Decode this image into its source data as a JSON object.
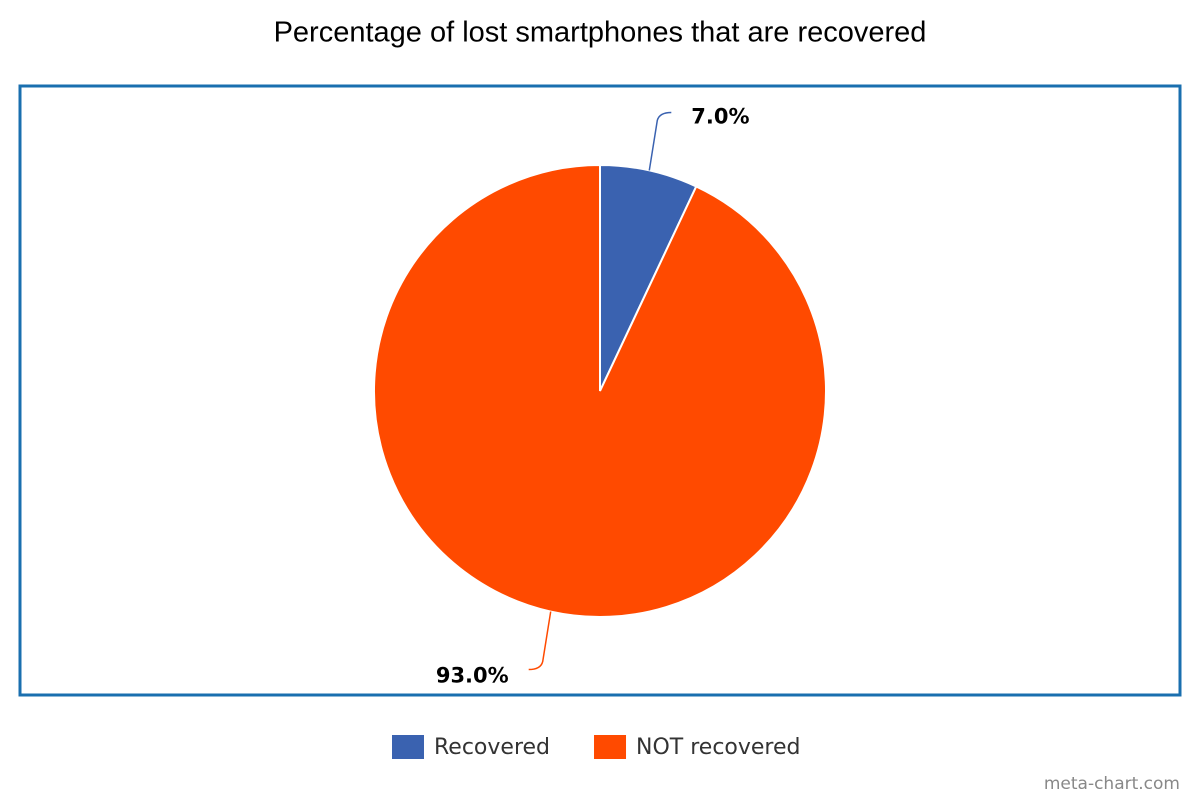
{
  "chart_data": {
    "type": "pie",
    "title": "Percentage of lost smartphones that are recovered",
    "categories": [
      "Recovered",
      "NOT recovered"
    ],
    "values": [
      7.0,
      93.0
    ],
    "value_labels": [
      "7.0%",
      "93.0%"
    ],
    "colors": [
      "#3a62b0",
      "#ff4a00"
    ],
    "legend": "bottom",
    "watermark": "meta-chart.com"
  }
}
